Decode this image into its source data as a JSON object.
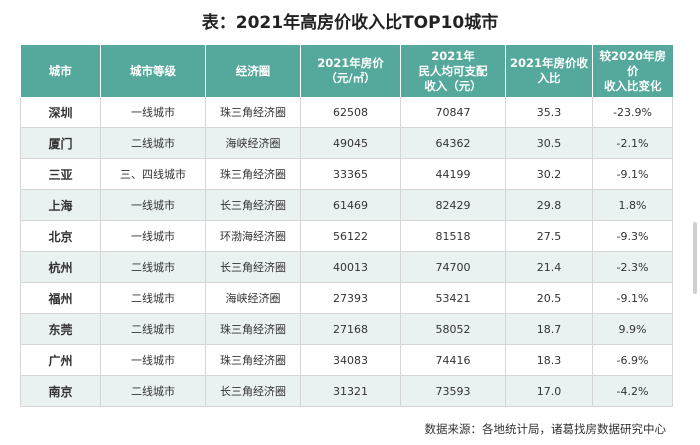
{
  "title": "表：2021年高房价收入比TOP10城市",
  "headers": [
    "城市",
    "城市等级",
    "经济圈",
    "2021年房价\n（元/㎡）",
    "2021年\n民人均可支配\n收入（元）",
    "2021年房价收\n入比",
    "较2020年房价\n收入比变化"
  ],
  "rows": [
    [
      "深圳",
      "一线城市",
      "珠三角经济圈",
      "62508",
      "70847",
      "35.3",
      "-23.9%"
    ],
    [
      "厦门",
      "二线城市",
      "海峡经济圈",
      "49045",
      "64362",
      "30.5",
      "-2.1%"
    ],
    [
      "三亚",
      "三、四线城市",
      "珠三角经济圈",
      "33365",
      "44199",
      "30.2",
      "-9.1%"
    ],
    [
      "上海",
      "一线城市",
      "长三角经济圈",
      "61469",
      "82429",
      "29.8",
      "1.8%"
    ],
    [
      "北京",
      "一线城市",
      "环渤海经济圈",
      "56122",
      "81518",
      "27.5",
      "-9.3%"
    ],
    [
      "杭州",
      "二线城市",
      "长三角经济圈",
      "40013",
      "74700",
      "21.4",
      "-2.3%"
    ],
    [
      "福州",
      "二线城市",
      "海峡经济圈",
      "27393",
      "53421",
      "20.5",
      "-9.1%"
    ],
    [
      "东莞",
      "二线城市",
      "珠三角经济圈",
      "27168",
      "58052",
      "18.7",
      "9.9%"
    ],
    [
      "广州",
      "一线城市",
      "珠三角经济圈",
      "34083",
      "74416",
      "18.3",
      "-6.9%"
    ],
    [
      "南京",
      "二线城市",
      "长三角经济圈",
      "31321",
      "73593",
      "17.0",
      "-4.2%"
    ]
  ],
  "source": "数据来源：各地统计局，诸葛找房数据研究中心",
  "colors": {
    "header_bg": "#54a89c",
    "stripe_bg": "#eaf2f1"
  }
}
